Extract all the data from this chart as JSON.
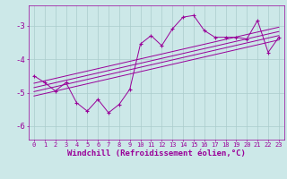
{
  "x": [
    0,
    1,
    2,
    3,
    4,
    5,
    6,
    7,
    8,
    9,
    10,
    11,
    12,
    13,
    14,
    15,
    16,
    17,
    18,
    19,
    20,
    21,
    22,
    23
  ],
  "y": [
    -4.5,
    -4.7,
    -4.95,
    -4.7,
    -5.3,
    -5.55,
    -5.2,
    -5.6,
    -5.35,
    -4.9,
    -3.55,
    -3.3,
    -3.6,
    -3.1,
    -2.75,
    -2.7,
    -3.15,
    -3.35,
    -3.35,
    -3.35,
    -3.4,
    -2.85,
    -3.8,
    -3.35
  ],
  "line_color": "#990099",
  "bg_color": "#cce8e8",
  "grid_color": "#aacccc",
  "xlabel": "Windchill (Refroidissement éolien,°C)",
  "xlim": [
    -0.5,
    23.5
  ],
  "ylim": [
    -6.4,
    -2.4
  ],
  "yticks": [
    -6,
    -5,
    -4,
    -3
  ],
  "xticks": [
    0,
    1,
    2,
    3,
    4,
    5,
    6,
    7,
    8,
    9,
    10,
    11,
    12,
    13,
    14,
    15,
    16,
    17,
    18,
    19,
    20,
    21,
    22,
    23
  ],
  "regression_lines": [
    {
      "x0": 0,
      "y0": -4.72,
      "x1": 23,
      "y1": -3.05
    },
    {
      "x0": 0,
      "y0": -4.85,
      "x1": 23,
      "y1": -3.18
    },
    {
      "x0": 0,
      "y0": -4.97,
      "x1": 23,
      "y1": -3.3
    },
    {
      "x0": 0,
      "y0": -5.1,
      "x1": 23,
      "y1": -3.43
    }
  ]
}
